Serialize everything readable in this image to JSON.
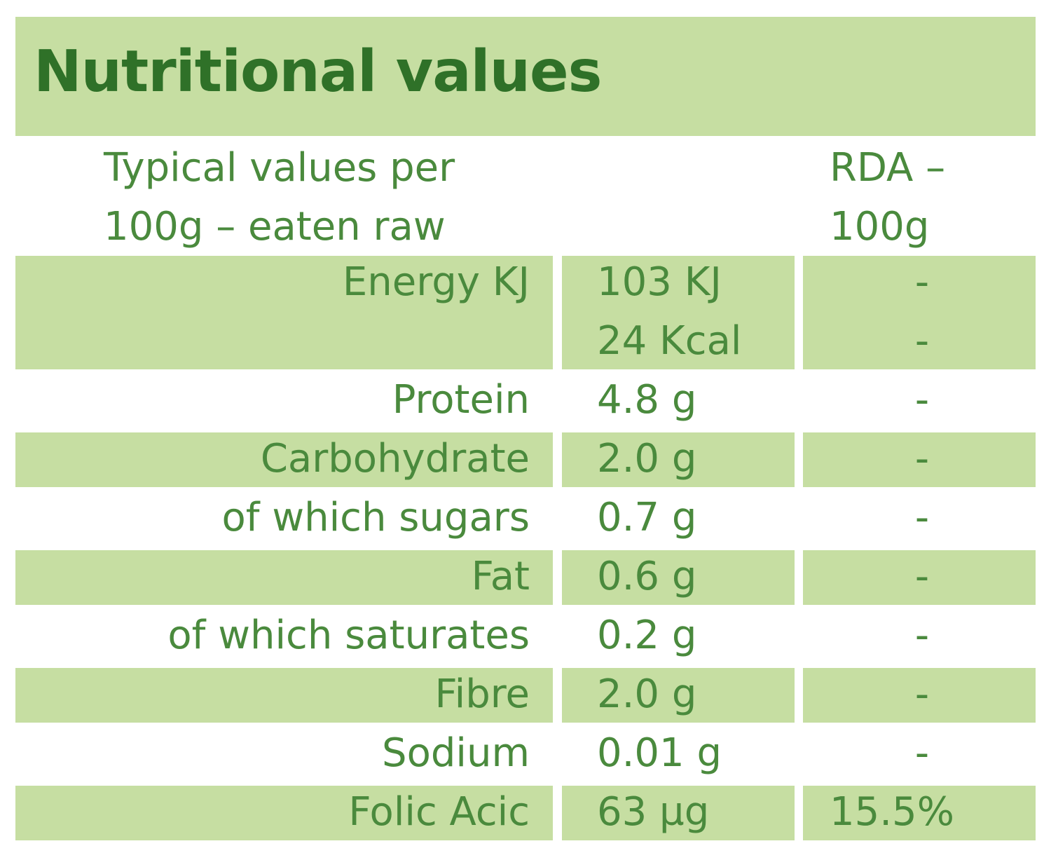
{
  "title": "Nutritional values",
  "header": {
    "left_line1": "Typical values per",
    "left_line2": "100g – eaten raw",
    "right_line1": "RDA –",
    "right_line2": "100g"
  },
  "rows": [
    {
      "label": "Energy KJ",
      "values": [
        "103 KJ",
        "24 Kcal"
      ],
      "rda": [
        "-",
        "-"
      ]
    },
    {
      "label": "Protein",
      "values": [
        "4.8 g"
      ],
      "rda": [
        "-"
      ]
    },
    {
      "label": "Carbohydrate",
      "values": [
        "2.0 g"
      ],
      "rda": [
        "-"
      ]
    },
    {
      "label": "of which sugars",
      "values": [
        "0.7 g"
      ],
      "rda": [
        "-"
      ]
    },
    {
      "label": "Fat",
      "values": [
        "0.6 g"
      ],
      "rda": [
        "-"
      ]
    },
    {
      "label": "of which saturates",
      "values": [
        "0.2 g"
      ],
      "rda": [
        "-"
      ]
    },
    {
      "label": "Fibre",
      "values": [
        "2.0 g"
      ],
      "rda": [
        "-"
      ]
    },
    {
      "label": "Sodium",
      "values": [
        "0.01 g"
      ],
      "rda": [
        "-"
      ]
    },
    {
      "label": "Folic Acic",
      "values": [
        "63 µg"
      ],
      "rda": [
        "15.5%"
      ]
    }
  ],
  "colors": {
    "band": "#c6dea2",
    "title_text": "#2f7128",
    "body_text": "#4a8a3d"
  }
}
